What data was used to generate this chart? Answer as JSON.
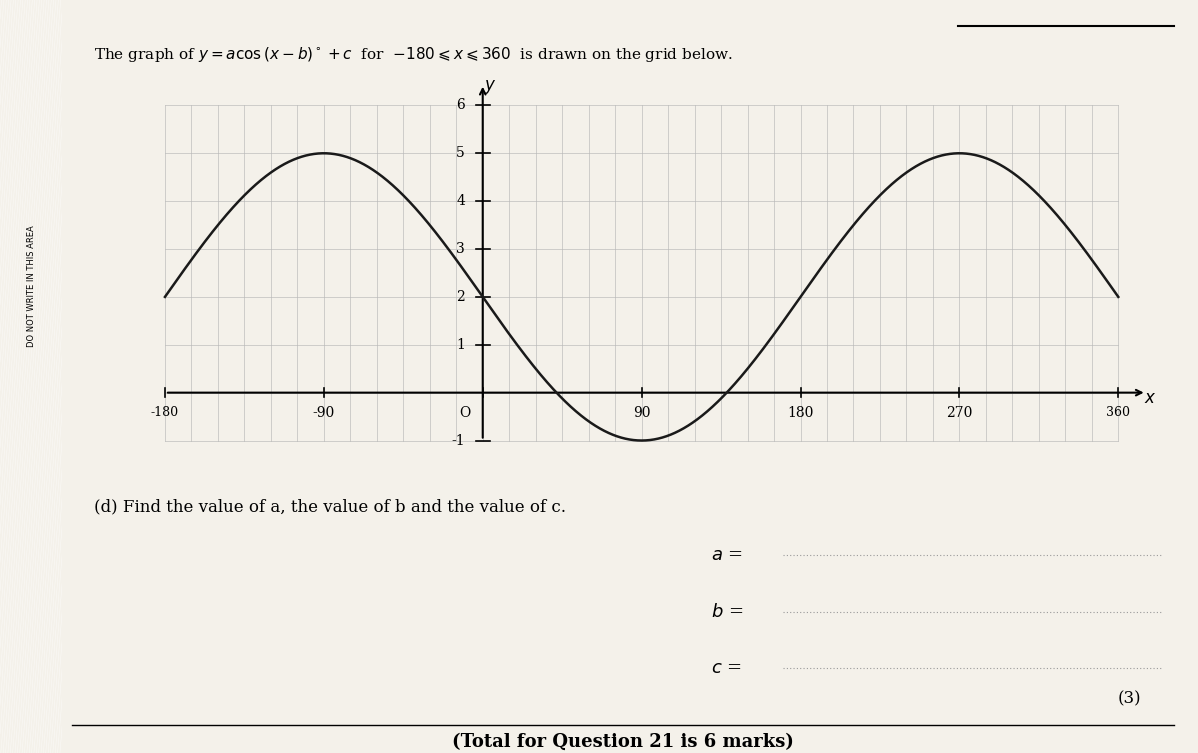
{
  "title_plain": "The graph of y = acos (x - b)° + c for -180 ≤ x ≤ 360 is drawn on the grid below.",
  "question_d": "(d) Find the value of a, the value of b and the value of c.",
  "marks": "(3)",
  "total_marks": "(Total for Question 21 is 6 marks)",
  "x_min": -180,
  "x_max": 360,
  "y_min": -1,
  "y_max": 6,
  "x_ticks": [
    -180,
    -90,
    0,
    90,
    180,
    270,
    360
  ],
  "y_ticks": [
    -1,
    1,
    2,
    3,
    4,
    5,
    6
  ],
  "a": 3,
  "b": -90,
  "c": 2,
  "curve_color": "#1a1a1a",
  "grid_color": "#b8b8b8",
  "axis_color": "#000000",
  "bg_color": "#ede9e1",
  "paper_color": "#f4f1ea",
  "left_stripe_color": "#bebebe",
  "curve_linewidth": 1.8,
  "grid_linewidth": 0.45
}
